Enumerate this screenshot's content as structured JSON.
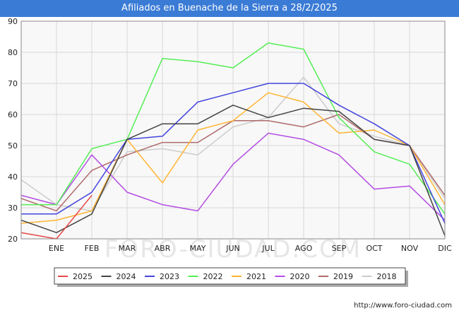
{
  "header": {
    "title": "Afiliados en Buenache de la Sierra a 28/2/2025"
  },
  "footer": {
    "url": "http://www.foro-ciudad.com"
  },
  "watermark": {
    "text": "FORO-CIUDAD.COM"
  },
  "chart_data": {
    "type": "line",
    "title": "Afiliados en Buenache de la Sierra a 28/2/2025",
    "xlabel": "",
    "ylabel": "",
    "categories": [
      "",
      "ENE",
      "FEB",
      "MAR",
      "ABR",
      "MAY",
      "JUN",
      "JUL",
      "AGO",
      "SEP",
      "OCT",
      "NOV",
      "DIC"
    ],
    "ylim": [
      20,
      90
    ],
    "yticks": [
      20,
      30,
      40,
      50,
      60,
      70,
      80,
      90
    ],
    "grid": true,
    "legend_position": "bottom",
    "series": [
      {
        "name": "2018",
        "color": "#cccccc",
        "values": [
          39,
          31,
          29,
          48,
          49,
          47,
          56,
          59,
          72,
          57,
          53,
          50,
          33
        ]
      },
      {
        "name": "2019",
        "color": "#b06a6a",
        "values": [
          33,
          29,
          42,
          47,
          51,
          51,
          58,
          58,
          56,
          60,
          52,
          50,
          34
        ]
      },
      {
        "name": "2020",
        "color": "#b44de3",
        "values": [
          34,
          31,
          47,
          35,
          31,
          29,
          44,
          54,
          52,
          47,
          36,
          37,
          26
        ]
      },
      {
        "name": "2021",
        "color": "#ffb534",
        "values": [
          25,
          26,
          29,
          52,
          38,
          55,
          58,
          67,
          64,
          54,
          55,
          50,
          31
        ]
      },
      {
        "name": "2022",
        "color": "#55ee55",
        "values": [
          31,
          31,
          49,
          52,
          78,
          77,
          75,
          83,
          81,
          59,
          48,
          44,
          28
        ]
      },
      {
        "name": "2023",
        "color": "#4444dd",
        "values": [
          28,
          28,
          35,
          52,
          53,
          64,
          67,
          70,
          70,
          63,
          57,
          50,
          25
        ]
      },
      {
        "name": "2024",
        "color": "#444444",
        "values": [
          26,
          22,
          28,
          52,
          57,
          57,
          63,
          59,
          62,
          61,
          52,
          50,
          21
        ]
      },
      {
        "name": "2025",
        "color": "#e84848",
        "values": [
          22,
          20,
          34,
          null,
          null,
          null,
          null,
          null,
          null,
          null,
          null,
          null,
          null
        ]
      }
    ],
    "legend_order": [
      "2025",
      "2024",
      "2023",
      "2022",
      "2021",
      "2020",
      "2019",
      "2018"
    ]
  }
}
